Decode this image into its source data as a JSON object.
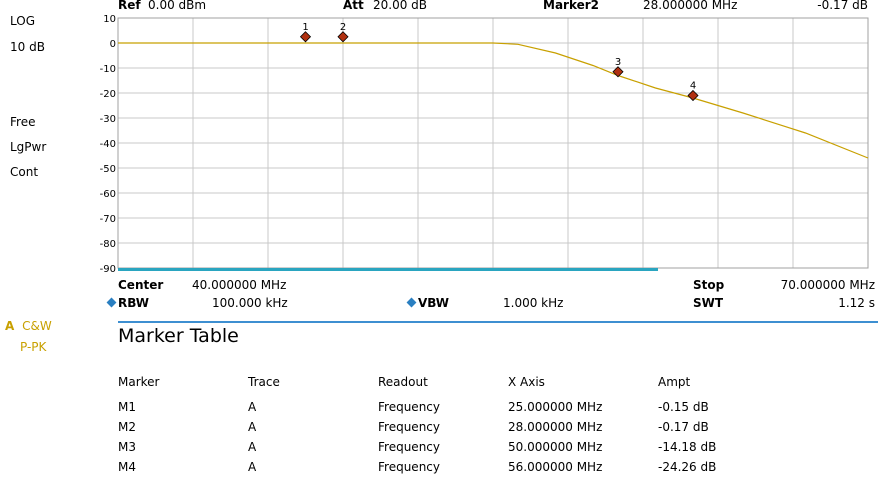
{
  "side": {
    "scale_type": "LOG",
    "scale_div": "10 dB",
    "sweep_mode": "Free",
    "detector": "LgPwr",
    "sweep": "Cont",
    "trace_letter": "A",
    "trace_mode": "C&W",
    "trace_detector": "P-PK"
  },
  "header": {
    "ref_label": "Ref",
    "ref_value": "0.00 dBm",
    "att_label": "Att",
    "att_value": "20.00 dB",
    "marker_label": "Marker2",
    "marker_freq": "28.000000 MHz",
    "marker_ampl": "-0.17 dB"
  },
  "footer": {
    "center_label": "Center",
    "center_value": "40.000000 MHz",
    "stop_label": "Stop",
    "stop_value": "70.000000 MHz",
    "rbw_label": "RBW",
    "rbw_value": "100.000 kHz",
    "vbw_label": "VBW",
    "vbw_value": "1.000 kHz",
    "swt_label": "SWT",
    "swt_value": "1.12 s"
  },
  "colors": {
    "trace": "#c8a000",
    "marker": "#b03010",
    "accent": "#3d8fd1",
    "grid": "#c8c8c8"
  },
  "chart_data": {
    "type": "line",
    "xlabel": "",
    "ylabel": "",
    "xlim": [
      10,
      70
    ],
    "ylim": [
      -90,
      10
    ],
    "grid": true,
    "y_ticks": [
      "10",
      "0",
      "-10",
      "-20",
      "-30",
      "-40",
      "-50",
      "-60",
      "-70",
      "-80",
      "-90"
    ],
    "series": [
      {
        "x": [
          10,
          15,
          20,
          25,
          28,
          30,
          35,
          38,
          40,
          42,
          45,
          48,
          50,
          53,
          56,
          60,
          65,
          70
        ],
        "y": [
          0,
          0,
          0,
          0,
          0,
          0,
          0,
          0,
          0,
          -0.5,
          -4,
          -9,
          -13,
          -18,
          -22,
          -28,
          -36,
          -46
        ]
      }
    ],
    "markers": [
      {
        "label": "1",
        "x": 25,
        "y": 2.5
      },
      {
        "label": "2",
        "x": 28,
        "y": 2.5
      },
      {
        "label": "3",
        "x": 50,
        "y": -11.5
      },
      {
        "label": "4",
        "x": 56,
        "y": -21
      }
    ]
  },
  "marker_table": {
    "title": "Marker Table",
    "columns": [
      "Marker",
      "Trace",
      "Readout",
      "X Axis",
      "Ampt"
    ],
    "rows": [
      [
        "M1",
        "A",
        "Frequency",
        "25.000000 MHz",
        "-0.15 dB"
      ],
      [
        "M2",
        "A",
        "Frequency",
        "28.000000 MHz",
        "-0.17 dB"
      ],
      [
        "M3",
        "A",
        "Frequency",
        "50.000000 MHz",
        "-14.18 dB"
      ],
      [
        "M4",
        "A",
        "Frequency",
        "56.000000 MHz",
        "-24.26 dB"
      ]
    ]
  }
}
